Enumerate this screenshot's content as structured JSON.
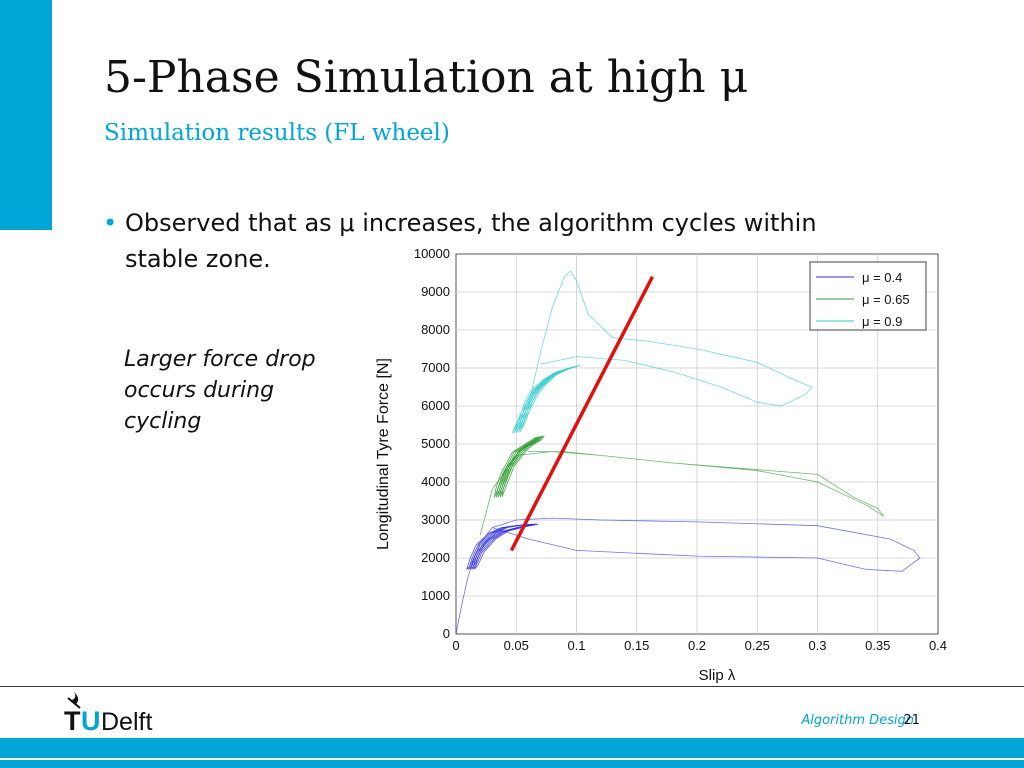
{
  "slide": {
    "title": "5-Phase Simulation at high μ",
    "subtitle": "Simulation results (FL wheel)",
    "bullet": "Observed that as μ increases, the algorithm cycles within stable zone.",
    "note": "Larger force drop occurs during cycling",
    "footer_label": "Algorithm Design",
    "page_number": "21",
    "logo_text": "TUDelft"
  },
  "colors": {
    "accent": "#00a6d6",
    "mu_0_4": "#3333dd",
    "mu_0_65": "#2e9a2e",
    "mu_0_9": "#33cccc",
    "annotation_line": "#e01010"
  },
  "chart_data": {
    "type": "line",
    "xlabel": "Slip λ",
    "ylabel": "Longitudinal Tyre Force [N]",
    "xlim": [
      0,
      0.4
    ],
    "ylim": [
      0,
      10000
    ],
    "xticks": [
      "0",
      "0.05",
      "0.1",
      "0.15",
      "0.2",
      "0.25",
      "0.3",
      "0.35",
      "0.4"
    ],
    "yticks": [
      "0",
      "1000",
      "2000",
      "3000",
      "4000",
      "5000",
      "6000",
      "7000",
      "8000",
      "9000",
      "10000"
    ],
    "grid": true,
    "legend_position": "top-right",
    "series": [
      {
        "name": "μ = 0.4",
        "color_key": "mu_0_4",
        "cycle": {
          "x": [
            0.012,
            0.015,
            0.02,
            0.03,
            0.04,
            0.05,
            0.06,
            0.065,
            0.055,
            0.04,
            0.03,
            0.02,
            0.015
          ],
          "y": [
            1700,
            2000,
            2350,
            2650,
            2800,
            2850,
            2880,
            2880,
            2820,
            2700,
            2500,
            2150,
            1800
          ]
        },
        "trace": {
          "x": [
            0,
            0.005,
            0.01,
            0.015,
            0.02,
            0.03,
            0.05,
            0.08,
            0.12,
            0.2,
            0.3,
            0.36,
            0.38,
            0.385,
            0.37,
            0.34,
            0.3,
            0.2,
            0.1,
            0.06,
            0.04,
            0.03
          ],
          "y": [
            0,
            800,
            1500,
            2000,
            2400,
            2800,
            3000,
            3050,
            3000,
            2950,
            2850,
            2500,
            2200,
            2000,
            1650,
            1700,
            2000,
            2050,
            2200,
            2500,
            2700,
            2800
          ]
        }
      },
      {
        "name": "μ = 0.65",
        "color_key": "mu_0_65",
        "cycle": {
          "x": [
            0.035,
            0.04,
            0.045,
            0.05,
            0.055,
            0.06,
            0.068,
            0.07,
            0.06,
            0.05,
            0.045,
            0.04,
            0.036
          ],
          "y": [
            3600,
            4000,
            4400,
            4600,
            4800,
            4950,
            5100,
            5200,
            5000,
            4800,
            4500,
            4200,
            3800
          ]
        },
        "trace": {
          "x": [
            0.02,
            0.03,
            0.05,
            0.08,
            0.12,
            0.18,
            0.25,
            0.3,
            0.34,
            0.355,
            0.35,
            0.33,
            0.3,
            0.24,
            0.18,
            0.12,
            0.09,
            0.06
          ],
          "y": [
            2600,
            3800,
            4700,
            4800,
            4700,
            4500,
            4300,
            4000,
            3400,
            3100,
            3300,
            3600,
            4200,
            4350,
            4500,
            4700,
            4800,
            4800
          ]
        }
      },
      {
        "name": "μ = 0.9",
        "color_key": "mu_0_9",
        "cycle": {
          "x": [
            0.05,
            0.055,
            0.06,
            0.065,
            0.07,
            0.08,
            0.09,
            0.1,
            0.095,
            0.085,
            0.075,
            0.065,
            0.06,
            0.055
          ],
          "y": [
            5300,
            5700,
            6000,
            6300,
            6500,
            6800,
            6950,
            7050,
            7000,
            6900,
            6700,
            6400,
            6100,
            5600
          ]
        },
        "trace": {
          "x": [
            0.06,
            0.07,
            0.08,
            0.09,
            0.095,
            0.1,
            0.11,
            0.13,
            0.16,
            0.2,
            0.25,
            0.28,
            0.295,
            0.29,
            0.27,
            0.25,
            0.22,
            0.18,
            0.14,
            0.1,
            0.07
          ],
          "y": [
            6000,
            7400,
            8600,
            9400,
            9550,
            9300,
            8400,
            7800,
            7700,
            7500,
            7150,
            6700,
            6500,
            6300,
            6000,
            6100,
            6500,
            6900,
            7200,
            7300,
            7100
          ]
        }
      }
    ],
    "annotation_line": {
      "x": [
        0.046,
        0.163
      ],
      "y": [
        2200,
        9400
      ]
    }
  }
}
